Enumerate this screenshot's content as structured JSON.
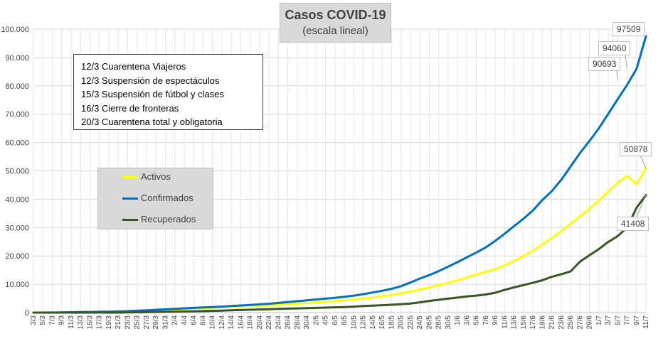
{
  "chart_data": {
    "type": "line",
    "title": "Casos  COVID-19",
    "subtitle": "(escala lineal)",
    "xlabel": "",
    "ylabel": "",
    "ylim": [
      0,
      100000
    ],
    "y_ticks": [
      "0",
      "10.000",
      "20.000",
      "30.000",
      "40.000",
      "50.000",
      "60.000",
      "70.000",
      "80.000",
      "90.000",
      "100.000"
    ],
    "x_tick_labels": [
      "3/3",
      "5/3",
      "7/3",
      "9/3",
      "11/3",
      "13/3",
      "15/3",
      "17/3",
      "19/3",
      "21/3",
      "23/3",
      "25/3",
      "27/3",
      "29/3",
      "31/3",
      "2/4",
      "4/4",
      "6/4",
      "8/4",
      "10/4",
      "12/4",
      "14/4",
      "16/4",
      "18/4",
      "20/4",
      "22/4",
      "24/4",
      "26/4",
      "28/4",
      "30/4",
      "2/5",
      "4/5",
      "6/5",
      "8/5",
      "10/5",
      "12/5",
      "14/5",
      "16/5",
      "18/5",
      "20/5",
      "22/5",
      "24/5",
      "26/5",
      "28/5",
      "30/5",
      "1/6",
      "3/6",
      "5/6",
      "7/6",
      "9/6",
      "11/6",
      "13/6",
      "15/6",
      "17/6",
      "19/6",
      "21/6",
      "23/6",
      "25/6",
      "27/6",
      "29/6",
      "1/7",
      "3/7",
      "5/7",
      "7/7",
      "9/7",
      "11/7"
    ],
    "grid": true,
    "legend_position": "left-middle",
    "series": [
      {
        "name": "Activos",
        "color": "#ffff00",
        "values": [
          0,
          0,
          0,
          0,
          0,
          0,
          0,
          0,
          0,
          0,
          60,
          230,
          420,
          590,
          820,
          1040,
          1220,
          1390,
          1560,
          1700,
          1850,
          1980,
          2120,
          2270,
          2440,
          2620,
          2800,
          2980,
          3170,
          3370,
          3580,
          3800,
          4050,
          4320,
          4620,
          4950,
          5320,
          5750,
          6250,
          6820,
          7450,
          8120,
          8850,
          9620,
          10450,
          11350,
          12350,
          13450,
          14400,
          15300,
          16600,
          18200,
          19900,
          21800,
          24000,
          26300,
          28700,
          31300,
          33900,
          36600,
          39500,
          42700,
          45800,
          48200,
          45300,
          50878
        ]
      },
      {
        "name": "Confirmados",
        "color": "#0070c0",
        "values": [
          2,
          12,
          30,
          70,
          120,
          170,
          220,
          280,
          330,
          400,
          500,
          650,
          800,
          980,
          1150,
          1300,
          1500,
          1650,
          1800,
          1950,
          2100,
          2300,
          2500,
          2700,
          2900,
          3100,
          3400,
          3700,
          4000,
          4300,
          4600,
          4900,
          5200,
          5600,
          6000,
          6500,
          7100,
          7700,
          8400,
          9300,
          10600,
          12000,
          13200,
          14600,
          16200,
          17800,
          19500,
          21200,
          23000,
          25300,
          27800,
          30500,
          33100,
          36000,
          39700,
          42800,
          46800,
          51500,
          56300,
          60500,
          65000,
          70100,
          75300,
          80300,
          86000,
          97509
        ]
      },
      {
        "name": "Recuperados",
        "color": "#375623",
        "values": [
          0,
          0,
          0,
          0,
          0,
          0,
          0,
          0,
          0,
          0,
          60,
          110,
          160,
          220,
          280,
          330,
          390,
          450,
          520,
          600,
          700,
          800,
          900,
          1000,
          1100,
          1200,
          1300,
          1400,
          1480,
          1560,
          1650,
          1750,
          1850,
          1950,
          2100,
          2300,
          2450,
          2600,
          2750,
          2950,
          3200,
          3600,
          4100,
          4500,
          4900,
          5300,
          5700,
          6000,
          6400,
          7000,
          8000,
          8900,
          9700,
          10500,
          11400,
          12600,
          13500,
          14500,
          18000,
          20200,
          22400,
          24900,
          27000,
          30000,
          37000,
          41408
        ]
      }
    ],
    "annotations": [
      {
        "text": "97509",
        "series": "Confirmados"
      },
      {
        "text": "94060",
        "series": "Confirmados"
      },
      {
        "text": "90693",
        "series": "Confirmados"
      },
      {
        "text": "50878",
        "series": "Activos"
      },
      {
        "text": "41408",
        "series": "Recuperados"
      }
    ]
  },
  "notes": [
    "12/3 Cuarentena Viajeros",
    "12/3 Suspensión de espectáculos",
    "15/3 Suspensión de fútbol y clases",
    "16/3 Cierre de fronteras",
    "20/3 Cuarentena total y obligatoria"
  ],
  "legend": [
    "Activos",
    "Confirmados",
    "Recuperados"
  ]
}
